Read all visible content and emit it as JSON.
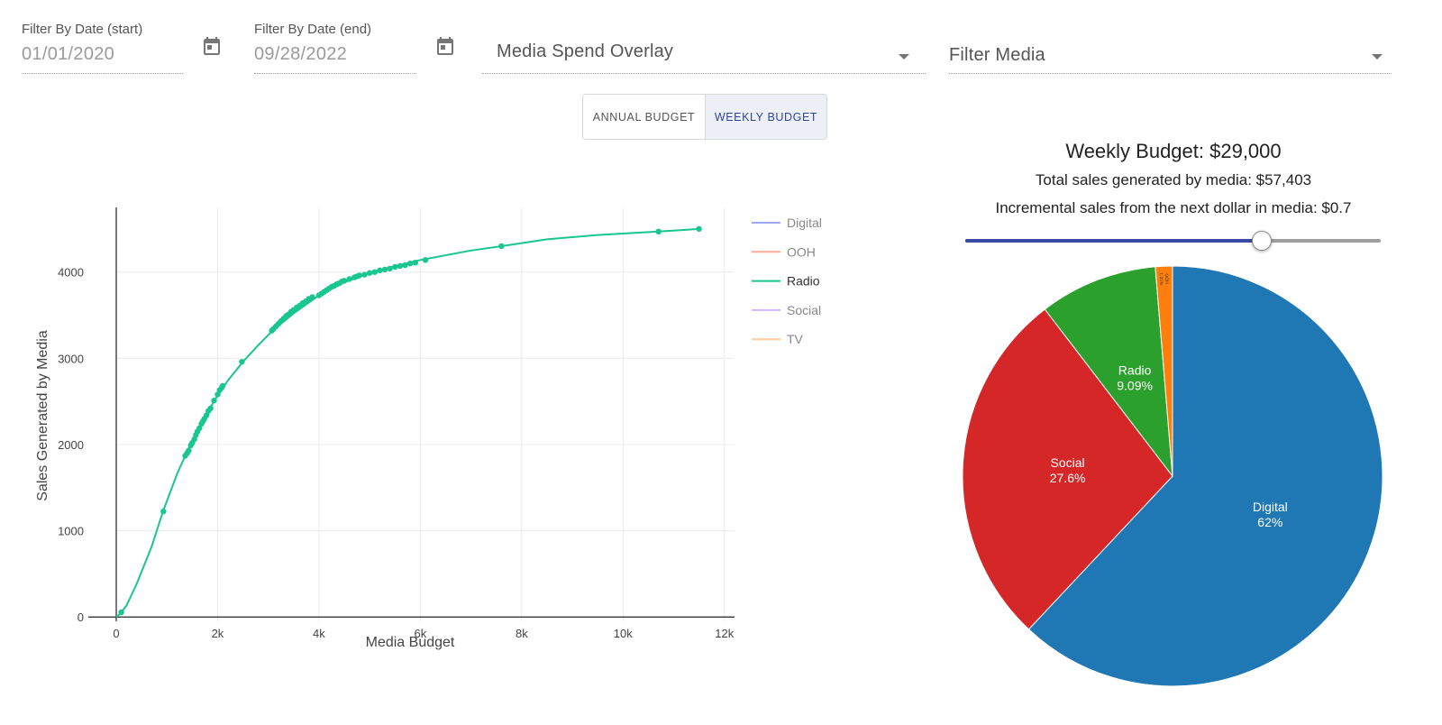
{
  "filters": {
    "start": {
      "label": "Filter By Date (start)",
      "value": "01/01/2020"
    },
    "end": {
      "label": "Filter By Date (end)",
      "value": "09/28/2022"
    },
    "overlay": {
      "value": "Media Spend Overlay"
    },
    "media": {
      "value": "Filter Media"
    }
  },
  "toggle": {
    "annual": "ANNUAL BUDGET",
    "weekly": "WEEKLY BUDGET",
    "selected": "weekly"
  },
  "summary": {
    "title": "Weekly Budget: $29,000",
    "total_sales": "Total sales generated by media: $57,403",
    "incremental": "Incremental sales from the next dollar in media: $0.7"
  },
  "slider": {
    "level": 0.713
  },
  "colors": {
    "radio_line": "#1ac690",
    "slider_active": "#3b4aa6",
    "toggle_selected_text": "#2d43a8"
  },
  "chart_data": [
    {
      "type": "line",
      "title": "",
      "xlabel": "Media Budget",
      "ylabel": "Sales Generated by Media",
      "xlim": [
        0,
        12200
      ],
      "ylim": [
        -50,
        4750
      ],
      "x_ticks": [
        0,
        2000,
        4000,
        6000,
        8000,
        10000,
        12000
      ],
      "x_tick_labels": [
        "0",
        "2k",
        "4k",
        "6k",
        "8k",
        "10k",
        "12k"
      ],
      "y_ticks": [
        0,
        1000,
        2000,
        3000,
        4000
      ],
      "y_tick_labels": [
        "0",
        "1000",
        "2000",
        "3000",
        "4000"
      ],
      "grid": true,
      "legend_position": "right",
      "legend": [
        {
          "name": "Digital",
          "color": "#9fa8f7",
          "active": false
        },
        {
          "name": "OOH",
          "color": "#f9aa97",
          "active": false
        },
        {
          "name": "Radio",
          "color": "#1ac690",
          "active": true
        },
        {
          "name": "Social",
          "color": "#d2b7f7",
          "active": false
        },
        {
          "name": "TV",
          "color": "#fecc9e",
          "active": false
        }
      ],
      "series": [
        {
          "name": "Radio",
          "color": "#1ac690",
          "line": [
            [
              0,
              0
            ],
            [
              80,
              40
            ],
            [
              200,
              130
            ],
            [
              400,
              380
            ],
            [
              700,
              820
            ],
            [
              920,
              1220
            ],
            [
              1200,
              1660
            ],
            [
              1400,
              1920
            ],
            [
              1700,
              2280
            ],
            [
              2000,
              2570
            ],
            [
              2200,
              2740
            ],
            [
              2500,
              2960
            ],
            [
              2800,
              3150
            ],
            [
              3100,
              3330
            ],
            [
              3500,
              3520
            ],
            [
              4000,
              3730
            ],
            [
              4500,
              3880
            ],
            [
              5000,
              3990
            ],
            [
              5500,
              4070
            ],
            [
              6000,
              4140
            ],
            [
              7000,
              4250
            ],
            [
              7600,
              4300
            ],
            [
              8500,
              4380
            ],
            [
              9500,
              4430
            ],
            [
              10700,
              4470
            ],
            [
              11500,
              4500
            ]
          ],
          "points": [
            [
              100,
              55
            ],
            [
              930,
              1225
            ],
            [
              1360,
              1870
            ],
            [
              1400,
              1900
            ],
            [
              1430,
              1930
            ],
            [
              1470,
              1990
            ],
            [
              1500,
              2020
            ],
            [
              1540,
              2060
            ],
            [
              1570,
              2110
            ],
            [
              1600,
              2150
            ],
            [
              1640,
              2190
            ],
            [
              1680,
              2240
            ],
            [
              1710,
              2270
            ],
            [
              1740,
              2300
            ],
            [
              1780,
              2340
            ],
            [
              1820,
              2390
            ],
            [
              1860,
              2420
            ],
            [
              1930,
              2510
            ],
            [
              2000,
              2580
            ],
            [
              2040,
              2630
            ],
            [
              2080,
              2660
            ],
            [
              2100,
              2680
            ],
            [
              2480,
              2960
            ],
            [
              3070,
              3320
            ],
            [
              3100,
              3340
            ],
            [
              3150,
              3370
            ],
            [
              3200,
              3400
            ],
            [
              3250,
              3430
            ],
            [
              3300,
              3460
            ],
            [
              3350,
              3490
            ],
            [
              3400,
              3510
            ],
            [
              3450,
              3540
            ],
            [
              3500,
              3560
            ],
            [
              3560,
              3590
            ],
            [
              3620,
              3610
            ],
            [
              3680,
              3640
            ],
            [
              3740,
              3660
            ],
            [
              3800,
              3690
            ],
            [
              3870,
              3710
            ],
            [
              4000,
              3730
            ],
            [
              4050,
              3750
            ],
            [
              4100,
              3770
            ],
            [
              4150,
              3790
            ],
            [
              4200,
              3810
            ],
            [
              4250,
              3830
            ],
            [
              4300,
              3840
            ],
            [
              4350,
              3860
            ],
            [
              4400,
              3870
            ],
            [
              4450,
              3890
            ],
            [
              4500,
              3900
            ],
            [
              4600,
              3920
            ],
            [
              4700,
              3940
            ],
            [
              4750,
              3950
            ],
            [
              4800,
              3960
            ],
            [
              4900,
              3970
            ],
            [
              5000,
              3990
            ],
            [
              5100,
              4000
            ],
            [
              5200,
              4020
            ],
            [
              5300,
              4030
            ],
            [
              5400,
              4040
            ],
            [
              5500,
              4060
            ],
            [
              5600,
              4070
            ],
            [
              5700,
              4080
            ],
            [
              5800,
              4100
            ],
            [
              5900,
              4110
            ],
            [
              6100,
              4140
            ],
            [
              7600,
              4300
            ],
            [
              10700,
              4470
            ],
            [
              11500,
              4500
            ]
          ]
        }
      ]
    },
    {
      "type": "pie",
      "title": "",
      "slices": [
        {
          "label": "Digital",
          "percent": 62,
          "pct_label": "62%",
          "color": "#1f77b4"
        },
        {
          "label": "Social",
          "percent": 27.6,
          "pct_label": "27.6%",
          "color": "#d62728"
        },
        {
          "label": "Radio",
          "percent": 9.09,
          "pct_label": "9.09%",
          "color": "#2ca02c"
        },
        {
          "label": "OOH",
          "percent": 1.31,
          "pct_label": "1.31%",
          "color": "#ff7f0e"
        }
      ]
    }
  ]
}
